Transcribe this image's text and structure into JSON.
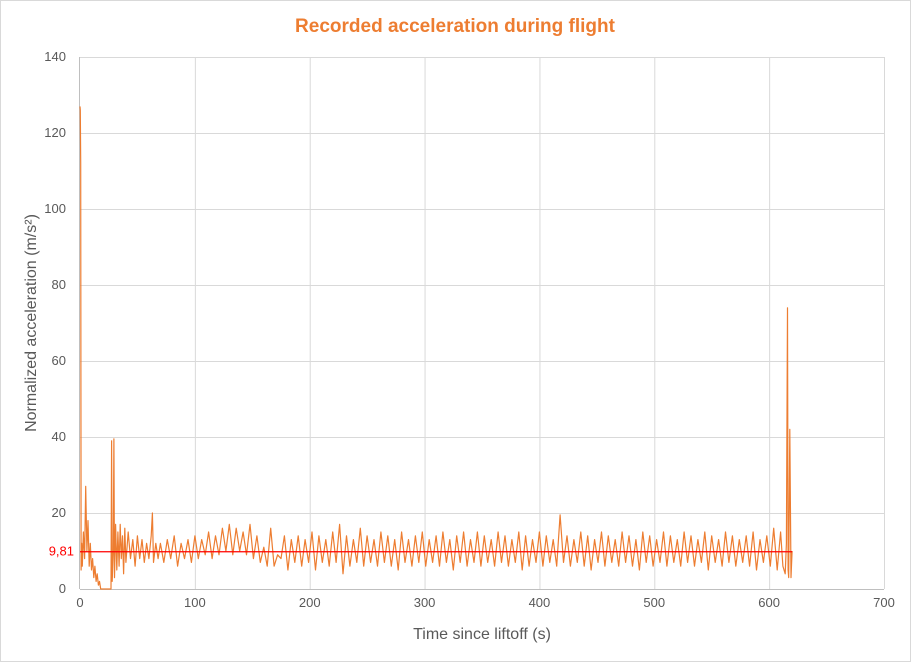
{
  "chart_data": {
    "type": "line",
    "title": "Recorded acceleration during flight",
    "xlabel": "Time since liftoff (s)",
    "ylabel": "Normalized acceleration (m/s²)",
    "xlim": [
      0,
      700
    ],
    "ylim": [
      0,
      140
    ],
    "xticks": [
      0,
      100,
      200,
      300,
      400,
      500,
      600,
      700
    ],
    "yticks": [
      0,
      20,
      40,
      60,
      80,
      100,
      120,
      140
    ],
    "grid": true,
    "legend": "none",
    "colors": {
      "series": "#ED7D31",
      "reference": "#FF0000",
      "title": "#ED7D31"
    },
    "reference_line": {
      "value": 9.81,
      "label": "9,81",
      "x_range": [
        0,
        620
      ]
    },
    "series": [
      {
        "points": [
          [
            0,
            127
          ],
          [
            0.3,
            126
          ],
          [
            0.6,
            112
          ],
          [
            1,
            5
          ],
          [
            1.5,
            12
          ],
          [
            2,
            6
          ],
          [
            3,
            15
          ],
          [
            4,
            8
          ],
          [
            5,
            27
          ],
          [
            6,
            10
          ],
          [
            7,
            18
          ],
          [
            8,
            6
          ],
          [
            9,
            12
          ],
          [
            10,
            5
          ],
          [
            11,
            8
          ],
          [
            12,
            3
          ],
          [
            13,
            6
          ],
          [
            14,
            2
          ],
          [
            15,
            4
          ],
          [
            16,
            1
          ],
          [
            17,
            2
          ],
          [
            18,
            0
          ],
          [
            27,
            0
          ],
          [
            27.5,
            39
          ],
          [
            28,
            2
          ],
          [
            29,
            10
          ],
          [
            29.5,
            39.5
          ],
          [
            30,
            3
          ],
          [
            31,
            17
          ],
          [
            32,
            5
          ],
          [
            33,
            15
          ],
          [
            34,
            6
          ],
          [
            35,
            17
          ],
          [
            36,
            8
          ],
          [
            37,
            14
          ],
          [
            38,
            4
          ],
          [
            39,
            16
          ],
          [
            40,
            7
          ],
          [
            42,
            15
          ],
          [
            44,
            8
          ],
          [
            46,
            13
          ],
          [
            48,
            6
          ],
          [
            50,
            14
          ],
          [
            52,
            8
          ],
          [
            54,
            13
          ],
          [
            56,
            7
          ],
          [
            58,
            12
          ],
          [
            60,
            8
          ],
          [
            62,
            14
          ],
          [
            63,
            20
          ],
          [
            64,
            7
          ],
          [
            66,
            12
          ],
          [
            68,
            8
          ],
          [
            70,
            12
          ],
          [
            73,
            7
          ],
          [
            76,
            13
          ],
          [
            79,
            8
          ],
          [
            82,
            14
          ],
          [
            85,
            6
          ],
          [
            88,
            12
          ],
          [
            91,
            8
          ],
          [
            94,
            13
          ],
          [
            97,
            7
          ],
          [
            100,
            14
          ],
          [
            103,
            8
          ],
          [
            106,
            13
          ],
          [
            109,
            9
          ],
          [
            112,
            15
          ],
          [
            115,
            8
          ],
          [
            118,
            14
          ],
          [
            121,
            9
          ],
          [
            124,
            16
          ],
          [
            127,
            10
          ],
          [
            130,
            17
          ],
          [
            133,
            9
          ],
          [
            136,
            16
          ],
          [
            139,
            10
          ],
          [
            142,
            15
          ],
          [
            145,
            9
          ],
          [
            148,
            17
          ],
          [
            151,
            8
          ],
          [
            154,
            14
          ],
          [
            157,
            7
          ],
          [
            160,
            11
          ],
          [
            163,
            6
          ],
          [
            166,
            16
          ],
          [
            169,
            6
          ],
          [
            172,
            9
          ],
          [
            175,
            8
          ],
          [
            178,
            14
          ],
          [
            181,
            5
          ],
          [
            184,
            13
          ],
          [
            187,
            7
          ],
          [
            190,
            14
          ],
          [
            193,
            6
          ],
          [
            196,
            13
          ],
          [
            199,
            7
          ],
          [
            202,
            15
          ],
          [
            205,
            5
          ],
          [
            208,
            14
          ],
          [
            211,
            7
          ],
          [
            214,
            13
          ],
          [
            217,
            6
          ],
          [
            220,
            15
          ],
          [
            223,
            7
          ],
          [
            226,
            17
          ],
          [
            229,
            4
          ],
          [
            232,
            14
          ],
          [
            235,
            6
          ],
          [
            238,
            13
          ],
          [
            241,
            7
          ],
          [
            244,
            16
          ],
          [
            247,
            6
          ],
          [
            250,
            14
          ],
          [
            253,
            7
          ],
          [
            256,
            13
          ],
          [
            259,
            6
          ],
          [
            262,
            15
          ],
          [
            265,
            7
          ],
          [
            268,
            14
          ],
          [
            271,
            6
          ],
          [
            274,
            13
          ],
          [
            277,
            5
          ],
          [
            280,
            15
          ],
          [
            283,
            7
          ],
          [
            286,
            13
          ],
          [
            289,
            6
          ],
          [
            292,
            14
          ],
          [
            295,
            7
          ],
          [
            298,
            15
          ],
          [
            301,
            6
          ],
          [
            304,
            13
          ],
          [
            307,
            7
          ],
          [
            310,
            14
          ],
          [
            313,
            6
          ],
          [
            316,
            15
          ],
          [
            319,
            7
          ],
          [
            322,
            13
          ],
          [
            325,
            5
          ],
          [
            328,
            14
          ],
          [
            331,
            7
          ],
          [
            334,
            15
          ],
          [
            337,
            6
          ],
          [
            340,
            13
          ],
          [
            343,
            7
          ],
          [
            346,
            15
          ],
          [
            349,
            6
          ],
          [
            352,
            14
          ],
          [
            355,
            7
          ],
          [
            358,
            13
          ],
          [
            361,
            6
          ],
          [
            364,
            15
          ],
          [
            367,
            7
          ],
          [
            370,
            14
          ],
          [
            373,
            6
          ],
          [
            376,
            13
          ],
          [
            379,
            7
          ],
          [
            382,
            15
          ],
          [
            385,
            5
          ],
          [
            388,
            14
          ],
          [
            391,
            6
          ],
          [
            394,
            13
          ],
          [
            397,
            7
          ],
          [
            400,
            15
          ],
          [
            403,
            6
          ],
          [
            406,
            14
          ],
          [
            409,
            7
          ],
          [
            412,
            13
          ],
          [
            415,
            6
          ],
          [
            418,
            19.5
          ],
          [
            421,
            7
          ],
          [
            424,
            14
          ],
          [
            427,
            6
          ],
          [
            430,
            13
          ],
          [
            433,
            7
          ],
          [
            436,
            15
          ],
          [
            439,
            6
          ],
          [
            442,
            14
          ],
          [
            445,
            5
          ],
          [
            448,
            13
          ],
          [
            451,
            7
          ],
          [
            454,
            15
          ],
          [
            457,
            6
          ],
          [
            460,
            14
          ],
          [
            463,
            7
          ],
          [
            466,
            13
          ],
          [
            469,
            6
          ],
          [
            472,
            15
          ],
          [
            475,
            7
          ],
          [
            478,
            14
          ],
          [
            481,
            6
          ],
          [
            484,
            13
          ],
          [
            487,
            5
          ],
          [
            490,
            15
          ],
          [
            493,
            7
          ],
          [
            496,
            14
          ],
          [
            499,
            6
          ],
          [
            502,
            13
          ],
          [
            505,
            7
          ],
          [
            508,
            15
          ],
          [
            511,
            6
          ],
          [
            514,
            14
          ],
          [
            517,
            7
          ],
          [
            520,
            13
          ],
          [
            523,
            6
          ],
          [
            526,
            15
          ],
          [
            529,
            7
          ],
          [
            532,
            14
          ],
          [
            535,
            6
          ],
          [
            538,
            13
          ],
          [
            541,
            7
          ],
          [
            544,
            15
          ],
          [
            547,
            5
          ],
          [
            550,
            14
          ],
          [
            553,
            7
          ],
          [
            556,
            13
          ],
          [
            559,
            6
          ],
          [
            562,
            15
          ],
          [
            565,
            7
          ],
          [
            568,
            14
          ],
          [
            571,
            6
          ],
          [
            574,
            13
          ],
          [
            577,
            7
          ],
          [
            580,
            14
          ],
          [
            583,
            6
          ],
          [
            586,
            15
          ],
          [
            589,
            5
          ],
          [
            592,
            13
          ],
          [
            595,
            7
          ],
          [
            598,
            14
          ],
          [
            601,
            6
          ],
          [
            604,
            16
          ],
          [
            607,
            5
          ],
          [
            610,
            15
          ],
          [
            612,
            6
          ],
          [
            614,
            4
          ],
          [
            615,
            12
          ],
          [
            616,
            74
          ],
          [
            616.5,
            5
          ],
          [
            617,
            3
          ],
          [
            618,
            42
          ],
          [
            619,
            3
          ],
          [
            620,
            10
          ]
        ]
      }
    ]
  }
}
